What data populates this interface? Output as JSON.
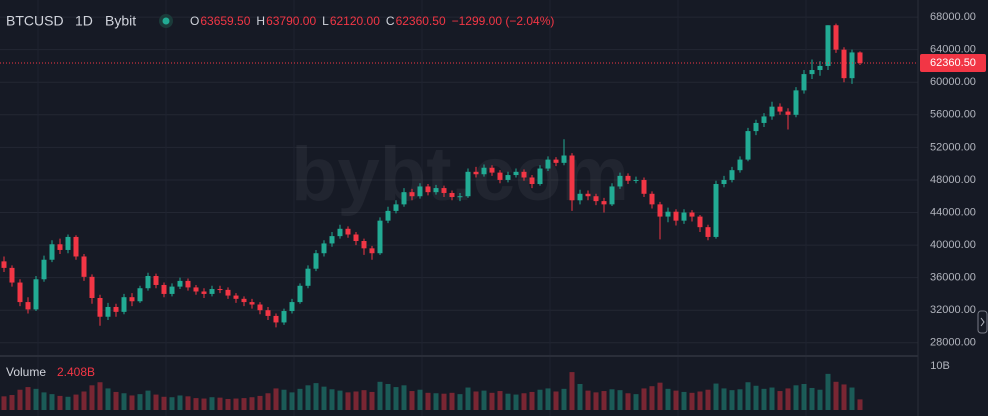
{
  "chart_data": {
    "type": "candlestick",
    "symbol": "BTCUSD",
    "interval": "1D",
    "exchange": "Bybit",
    "ohlc_legend": [
      {
        "label": "O",
        "value": "63659.50"
      },
      {
        "label": "H",
        "value": "63790.00"
      },
      {
        "label": "L",
        "value": "62120.00"
      },
      {
        "label": "C",
        "value": "62360.50"
      }
    ],
    "change": "−1299.00 (−2.04%)",
    "watermark": "bybt.com",
    "up_color": "#22ab94",
    "down_color": "#f23645",
    "grid": true,
    "ylim": [
      26500,
      70100
    ],
    "yticks": [
      {
        "value": 28000,
        "label": "28000.00"
      },
      {
        "value": 32000,
        "label": "32000.00"
      },
      {
        "value": 36000,
        "label": "36000.00"
      },
      {
        "value": 40000,
        "label": "40000.00"
      },
      {
        "value": 44000,
        "label": "44000.00"
      },
      {
        "value": 48000,
        "label": "48000.00"
      },
      {
        "value": 52000,
        "label": "52000.00"
      },
      {
        "value": 56000,
        "label": "56000.00"
      },
      {
        "value": 60000,
        "label": "60000.00"
      },
      {
        "value": 64000,
        "label": "64000.00"
      },
      {
        "value": 68000,
        "label": "68000.00"
      }
    ],
    "last_price": {
      "value": 62360.5,
      "label": "62360.50"
    },
    "open": [
      38000,
      37200,
      35400,
      33000,
      32100,
      35800,
      38200,
      40100,
      39400,
      41000,
      38600,
      36100,
      33500,
      31200,
      32400,
      31800,
      33600,
      33100,
      34700,
      36200,
      35100,
      34000,
      34900,
      35600,
      34800,
      34300,
      34000,
      34600,
      34500,
      33800,
      33400,
      33000,
      32700,
      32000,
      31300,
      30500,
      31900,
      33000,
      35000,
      37100,
      39000,
      40200,
      41100,
      42000,
      41300,
      40500,
      39600,
      39000,
      43000,
      44200,
      45000,
      46500,
      46000,
      47200,
      46500,
      47000,
      46400,
      45900,
      46000,
      49000,
      48700,
      49500,
      48900,
      48000,
      48600,
      49000,
      48300,
      47500,
      49400,
      50500,
      50100,
      51000,
      45500,
      46300,
      46000,
      45400,
      45000,
      47200,
      48500,
      47900,
      48000,
      46300,
      45000,
      43500,
      44100,
      43000,
      44000,
      43500,
      42200,
      41000,
      47500,
      48000,
      49200,
      50500,
      54000,
      55000,
      55800,
      57000,
      56400,
      56000,
      59000,
      61000,
      61500,
      62000,
      67000,
      64000,
      60500,
      63659.5
    ],
    "high": [
      38600,
      37500,
      35800,
      33600,
      36200,
      38700,
      40600,
      40800,
      41300,
      41200,
      38900,
      36400,
      33900,
      32900,
      32800,
      34000,
      34100,
      35000,
      36600,
      36500,
      35400,
      35300,
      36000,
      35900,
      35100,
      34700,
      35000,
      35000,
      34800,
      34100,
      33700,
      33400,
      33000,
      32400,
      31600,
      32200,
      33400,
      35300,
      37500,
      39400,
      40600,
      41600,
      42500,
      42300,
      41600,
      40800,
      39900,
      43400,
      44700,
      45500,
      47000,
      46900,
      47600,
      47500,
      47400,
      47300,
      46700,
      46400,
      49400,
      49600,
      49900,
      49800,
      49200,
      49000,
      49400,
      49300,
      48600,
      49800,
      50900,
      50800,
      53000,
      51300,
      46800,
      46700,
      46300,
      45800,
      47600,
      48900,
      48800,
      48400,
      48300,
      46600,
      45300,
      44600,
      44400,
      44400,
      44300,
      43700,
      42500,
      47900,
      48500,
      49600,
      50900,
      54400,
      55400,
      56200,
      57600,
      57400,
      56800,
      59400,
      61500,
      62800,
      62600,
      67000,
      67200,
      64300,
      64000,
      63790
    ],
    "low": [
      36700,
      34900,
      32500,
      31600,
      31900,
      35500,
      37900,
      38900,
      39000,
      38200,
      35600,
      32800,
      30100,
      30800,
      31200,
      31500,
      32500,
      32900,
      34400,
      34700,
      33600,
      33700,
      34600,
      34400,
      33900,
      33500,
      33700,
      34100,
      33400,
      32900,
      32500,
      32200,
      31500,
      30800,
      29900,
      30200,
      31600,
      32800,
      34700,
      36800,
      38600,
      39800,
      40800,
      40900,
      40000,
      38800,
      38200,
      38800,
      42700,
      43900,
      44700,
      45500,
      45700,
      46100,
      46200,
      45900,
      45500,
      45400,
      45800,
      48300,
      48400,
      48500,
      47600,
      47700,
      48300,
      47900,
      47000,
      47300,
      49100,
      49700,
      49800,
      44200,
      45000,
      45500,
      44900,
      44000,
      44800,
      46900,
      47500,
      47600,
      45900,
      44500,
      40700,
      42800,
      42400,
      42600,
      42900,
      41600,
      40600,
      40800,
      47100,
      47700,
      48900,
      50300,
      53500,
      54500,
      55400,
      56000,
      54200,
      55700,
      58600,
      60400,
      60800,
      61500,
      63600,
      60000,
      59800,
      62120
    ],
    "close": [
      37200,
      35400,
      33000,
      32100,
      35800,
      38200,
      40100,
      39400,
      41000,
      38600,
      36100,
      33500,
      31200,
      32400,
      31800,
      33600,
      33100,
      34700,
      36200,
      35100,
      34000,
      34900,
      35600,
      34800,
      34300,
      34000,
      34600,
      34500,
      33800,
      33400,
      33000,
      32700,
      32000,
      31300,
      30500,
      31900,
      33000,
      35000,
      37100,
      39000,
      40200,
      41100,
      42000,
      41300,
      40500,
      39600,
      39000,
      43000,
      44200,
      45000,
      46500,
      46000,
      47200,
      46500,
      47000,
      46400,
      45900,
      46000,
      49000,
      48700,
      49500,
      48900,
      48000,
      48600,
      49000,
      48300,
      47500,
      49400,
      50500,
      50100,
      51000,
      45500,
      46300,
      46000,
      45400,
      45000,
      47200,
      48500,
      47900,
      48000,
      46300,
      45000,
      43500,
      44100,
      43000,
      44000,
      43500,
      42200,
      41000,
      47500,
      48000,
      49200,
      50500,
      54000,
      55000,
      55800,
      57000,
      56400,
      56000,
      59000,
      61000,
      61500,
      62000,
      67000,
      64000,
      60500,
      63659.5,
      62360.5
    ],
    "volume": {
      "name": "Volume",
      "label": "2.408B",
      "ylim": [
        0,
        11.8
      ],
      "yticks": [
        {
          "value": 10,
          "label": "10B"
        }
      ],
      "values": [
        3.1,
        3.4,
        4.6,
        5.2,
        4.8,
        4.0,
        3.6,
        3.2,
        3.0,
        3.5,
        4.2,
        5.6,
        6.3,
        4.9,
        4.1,
        3.8,
        3.3,
        3.6,
        4.4,
        3.5,
        3.0,
        2.9,
        3.3,
        3.1,
        2.7,
        2.6,
        2.9,
        2.8,
        2.5,
        2.6,
        2.7,
        2.9,
        3.2,
        3.8,
        4.9,
        4.6,
        4.0,
        4.8,
        5.6,
        6.1,
        5.3,
        4.7,
        4.4,
        4.0,
        4.2,
        4.5,
        4.1,
        6.4,
        5.9,
        5.2,
        5.6,
        4.3,
        4.6,
        3.9,
        3.8,
        3.7,
        3.9,
        3.6,
        5.1,
        4.2,
        4.4,
        3.9,
        4.3,
        3.7,
        3.5,
        3.8,
        4.1,
        4.6,
        4.9,
        4.2,
        4.8,
        8.6,
        5.9,
        4.4,
        4.0,
        4.3,
        4.7,
        4.5,
        3.8,
        3.6,
        4.9,
        5.4,
        6.2,
        4.8,
        4.4,
        4.1,
        3.9,
        4.2,
        4.6,
        6.0,
        4.9,
        4.5,
        4.7,
        6.3,
        5.5,
        4.8,
        5.1,
        4.3,
        4.9,
        5.6,
        5.9,
        5.0,
        4.6,
        8.2,
        6.4,
        5.8,
        5.1,
        2.408
      ]
    }
  }
}
